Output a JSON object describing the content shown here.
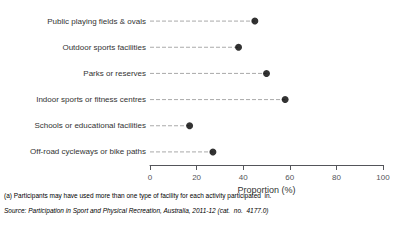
{
  "chart_data": {
    "type": "lollipop",
    "orientation": "horizontal",
    "categories": [
      "Public playing fields & ovals",
      "Outdoor sports facilities",
      "Parks or reserves",
      "Indoor sports or fitness centres",
      "Schools or educational facilities",
      "Off-road cycleways or bike paths"
    ],
    "values": [
      45,
      38,
      50,
      58,
      17,
      27
    ],
    "xlabel": "Proportion (%)",
    "xlim": [
      0,
      100
    ],
    "xticks": [
      0,
      20,
      40,
      60,
      80,
      100
    ],
    "color": "#000000",
    "marker": "circle",
    "line_style": "dashed",
    "grid": false,
    "annotations": [
      "(a) Participants may have used more than one type of facility for each activity participated  in.",
      "Source: Participation in Sport and Physical Recreation, Australia, 2011-12 (cat.  no.  4177.0)"
    ]
  }
}
